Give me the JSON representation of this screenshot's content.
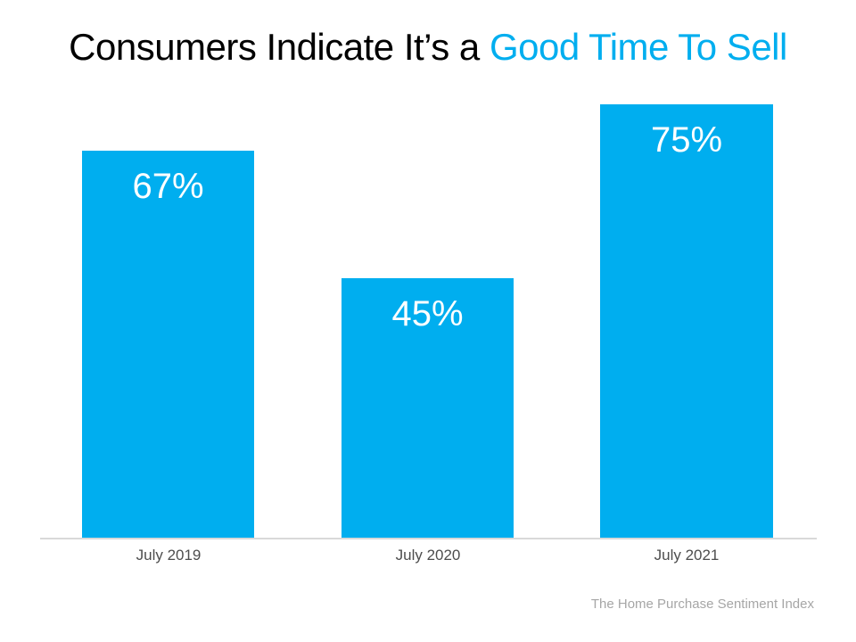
{
  "title": {
    "black_part": "Consumers Indicate It’s a ",
    "blue_part": "Good Time To Sell",
    "blue_color": "#00AEEF"
  },
  "footer": {
    "source_text": "The Home Purchase Sentiment Index",
    "color": "#A6A6A6"
  },
  "chart_data": {
    "type": "bar",
    "title": "Consumers Indicate It’s a Good Time To Sell",
    "categories": [
      "July 2019",
      "July 2020",
      "July 2021"
    ],
    "values": [
      67,
      45,
      75
    ],
    "value_labels": [
      "67%",
      "45%",
      "75%"
    ],
    "bar_color": "#00AEEF",
    "value_label_color": "#FFFFFF",
    "axis_line_color": "#D9D9D9",
    "category_label_color": "#4d4d4d",
    "ylim": [
      0,
      80
    ],
    "xlabel": "",
    "ylabel": "",
    "grid": false,
    "legend": false,
    "data_label_position": "inside-top",
    "annotation": "The Home Purchase Sentiment Index"
  }
}
